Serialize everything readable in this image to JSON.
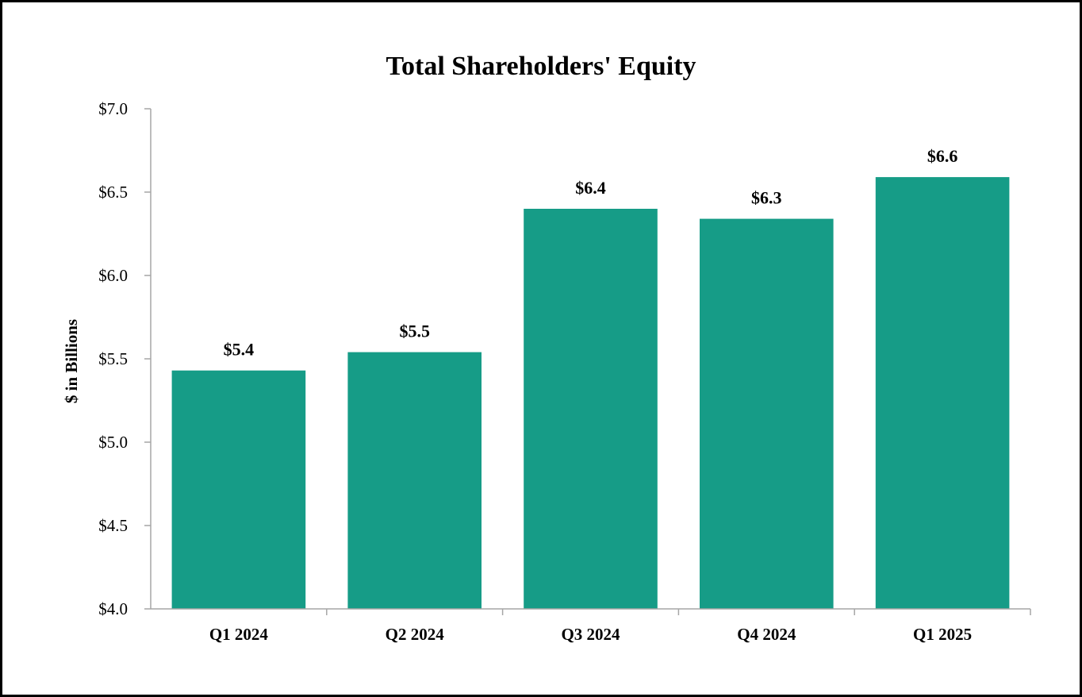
{
  "chart_data": {
    "type": "bar",
    "title": "Total Shareholders' Equity",
    "xlabel": "",
    "ylabel": "$ in Billions",
    "categories": [
      "Q1 2024",
      "Q2 2024",
      "Q3 2024",
      "Q4 2024",
      "Q1 2025"
    ],
    "values": [
      5.43,
      5.54,
      6.4,
      6.34,
      6.59
    ],
    "data_labels": [
      "$5.4",
      "$5.5",
      "$6.4",
      "$6.3",
      "$6.6"
    ],
    "ylim": [
      4.0,
      7.0
    ],
    "yticks": [
      4.0,
      4.5,
      5.0,
      5.5,
      6.0,
      6.5,
      7.0
    ],
    "ytick_labels": [
      "$4.0",
      "$4.5",
      "$5.0",
      "$5.5",
      "$6.0",
      "$6.5",
      "$7.0"
    ],
    "grid": false,
    "legend": "none",
    "bar_color": "#169c87",
    "axis_color": "#a6a6a6"
  }
}
